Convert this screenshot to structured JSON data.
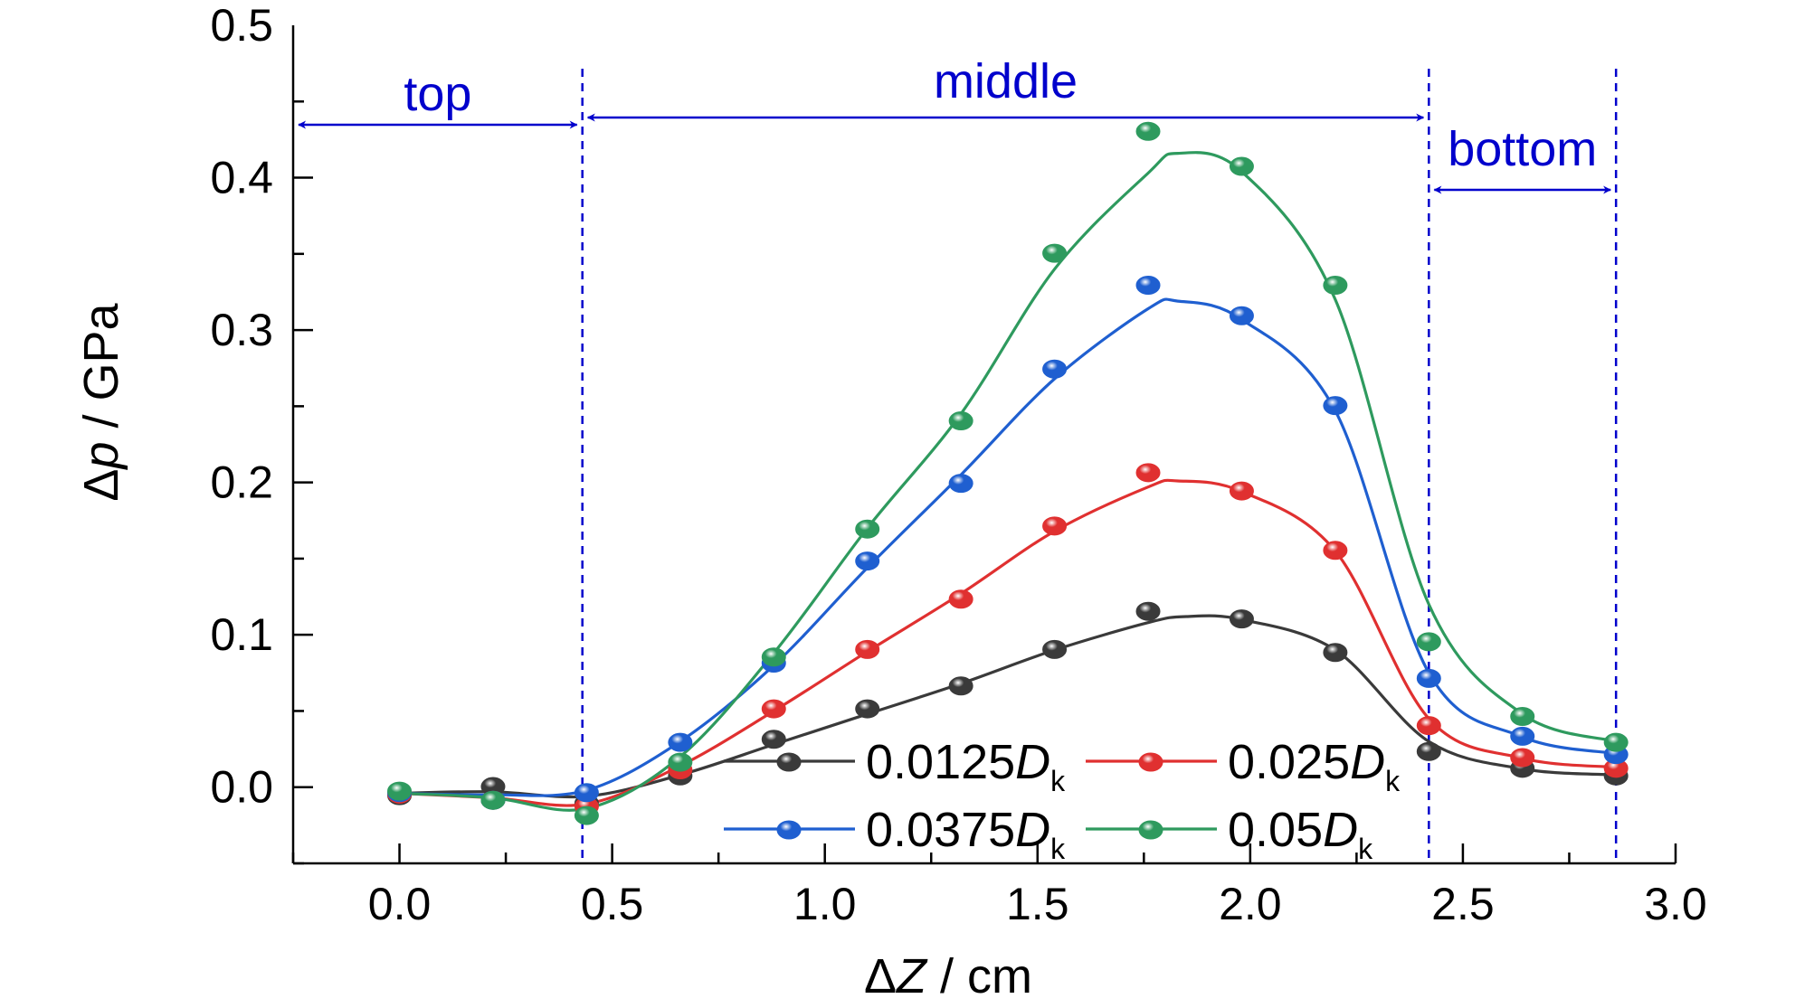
{
  "chart_data": {
    "type": "line",
    "title": "",
    "xlabel": {
      "sym": "ΔZ",
      "unit": " / cm"
    },
    "ylabel": {
      "sym": "Δp",
      "unit": " / GPa"
    },
    "xlim": [
      -0.25,
      3.0
    ],
    "ylim": [
      -0.05,
      0.5
    ],
    "xticks": [
      "0.0",
      "0.5",
      "1.0",
      "1.5",
      "2.0",
      "2.5",
      "3.0"
    ],
    "yticks": [
      "0.0",
      "0.1",
      "0.2",
      "0.3",
      "0.4",
      "0.5"
    ],
    "grid": false,
    "legend_position": "bottom-center",
    "x": [
      0.0,
      0.22,
      0.44,
      0.66,
      0.88,
      1.1,
      1.32,
      1.54,
      1.76,
      1.98,
      2.2,
      2.42,
      2.64,
      2.86
    ],
    "series": [
      {
        "name_main": "0.0125",
        "name_sym": "D",
        "name_sub": "k",
        "color": "#3a3a3a",
        "values": [
          -0.005,
          0.001,
          -0.01,
          0.008,
          0.032,
          0.052,
          0.067,
          0.091,
          0.116,
          0.111,
          0.089,
          0.024,
          0.013,
          0.008
        ]
      },
      {
        "name_main": "0.025",
        "name_sym": "D",
        "name_sub": "k",
        "color": "#e03030",
        "values": [
          -0.004,
          -0.008,
          -0.012,
          0.012,
          0.052,
          0.091,
          0.124,
          0.172,
          0.207,
          0.195,
          0.156,
          0.041,
          0.02,
          0.013
        ]
      },
      {
        "name_main": "0.0375",
        "name_sym": "D",
        "name_sub": "k",
        "color": "#1f5fd0",
        "values": [
          -0.003,
          -0.008,
          -0.003,
          0.03,
          0.082,
          0.149,
          0.2,
          0.275,
          0.33,
          0.31,
          0.251,
          0.072,
          0.034,
          0.022
        ]
      },
      {
        "name_main": "0.05",
        "name_sym": "D",
        "name_sub": "k",
        "color": "#2e9a5e",
        "values": [
          -0.002,
          -0.008,
          -0.018,
          0.017,
          0.086,
          0.17,
          0.241,
          0.351,
          0.431,
          0.408,
          0.33,
          0.096,
          0.047,
          0.03
        ]
      }
    ],
    "curves": [
      [
        [
          0.0,
          -0.004
        ],
        [
          0.22,
          -0.003
        ],
        [
          0.44,
          -0.006
        ],
        [
          0.66,
          0.008
        ],
        [
          0.88,
          0.028
        ],
        [
          1.1,
          0.048
        ],
        [
          1.32,
          0.068
        ],
        [
          1.54,
          0.09
        ],
        [
          1.76,
          0.108
        ],
        [
          1.85,
          0.112
        ],
        [
          1.98,
          0.11
        ],
        [
          2.2,
          0.09
        ],
        [
          2.42,
          0.03
        ],
        [
          2.64,
          0.012
        ],
        [
          2.86,
          0.008
        ]
      ],
      [
        [
          0.0,
          -0.004
        ],
        [
          0.22,
          -0.007
        ],
        [
          0.44,
          -0.011
        ],
        [
          0.66,
          0.014
        ],
        [
          0.88,
          0.05
        ],
        [
          1.1,
          0.089
        ],
        [
          1.32,
          0.127
        ],
        [
          1.54,
          0.168
        ],
        [
          1.76,
          0.197
        ],
        [
          1.83,
          0.201
        ],
        [
          1.98,
          0.194
        ],
        [
          2.2,
          0.155
        ],
        [
          2.42,
          0.045
        ],
        [
          2.64,
          0.019
        ],
        [
          2.86,
          0.013
        ]
      ],
      [
        [
          0.0,
          -0.004
        ],
        [
          0.22,
          -0.005
        ],
        [
          0.44,
          -0.002
        ],
        [
          0.66,
          0.03
        ],
        [
          0.88,
          0.08
        ],
        [
          1.1,
          0.144
        ],
        [
          1.32,
          0.205
        ],
        [
          1.54,
          0.268
        ],
        [
          1.76,
          0.314
        ],
        [
          1.83,
          0.319
        ],
        [
          1.98,
          0.307
        ],
        [
          2.2,
          0.247
        ],
        [
          2.42,
          0.075
        ],
        [
          2.64,
          0.033
        ],
        [
          2.86,
          0.022
        ]
      ],
      [
        [
          0.0,
          -0.004
        ],
        [
          0.22,
          -0.007
        ],
        [
          0.44,
          -0.014
        ],
        [
          0.66,
          0.02
        ],
        [
          0.88,
          0.088
        ],
        [
          1.1,
          0.17
        ],
        [
          1.32,
          0.245
        ],
        [
          1.54,
          0.34
        ],
        [
          1.76,
          0.403
        ],
        [
          1.83,
          0.416
        ],
        [
          1.98,
          0.404
        ],
        [
          2.2,
          0.32
        ],
        [
          2.42,
          0.12
        ],
        [
          2.64,
          0.048
        ],
        [
          2.86,
          0.03
        ]
      ]
    ],
    "regions": [
      {
        "label": "top",
        "from": -0.25,
        "to": 0.43
      },
      {
        "label": "middle",
        "from": 0.43,
        "to": 2.42
      },
      {
        "label": "bottom",
        "from": 2.42,
        "to": 2.86
      }
    ],
    "region_lines": [
      0.43,
      2.42,
      2.86
    ]
  }
}
